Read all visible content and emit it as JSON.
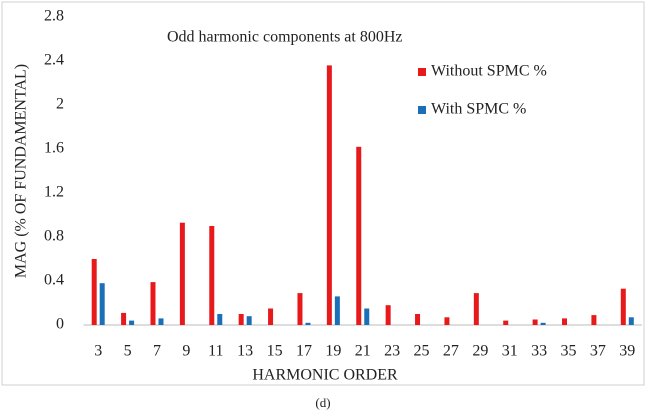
{
  "chart_data": {
    "type": "bar",
    "annotation": "Odd harmonic components at 800Hz",
    "x_label": "HARMONIC ORDER",
    "y_label": "MAG (% OF FUNDAMENTAL)",
    "caption": "(d)",
    "categories": [
      "3",
      "5",
      "7",
      "9",
      "11",
      "13",
      "15",
      "17",
      "19",
      "21",
      "23",
      "25",
      "27",
      "29",
      "31",
      "33",
      "35",
      "37",
      "39"
    ],
    "series": [
      {
        "name": "Without SPMC %",
        "color": "#e8191b",
        "values": [
          0.6,
          0.11,
          0.39,
          0.93,
          0.9,
          0.1,
          0.15,
          0.29,
          2.36,
          1.62,
          0.18,
          0.1,
          0.07,
          0.29,
          0.04,
          0.05,
          0.06,
          0.09,
          0.33
        ]
      },
      {
        "name": "With SPMC %",
        "color": "#1a6fb8",
        "values": [
          0.38,
          0.04,
          0.06,
          0,
          0.1,
          0.08,
          0,
          0.02,
          0.26,
          0.15,
          0,
          0,
          0,
          0,
          0,
          0.02,
          0,
          0,
          0.07
        ]
      }
    ],
    "ylim": [
      0,
      2.8
    ],
    "yticks": [
      0,
      0.4,
      0.8,
      1.2,
      1.6,
      2,
      2.4,
      2.8
    ],
    "grid": false
  }
}
